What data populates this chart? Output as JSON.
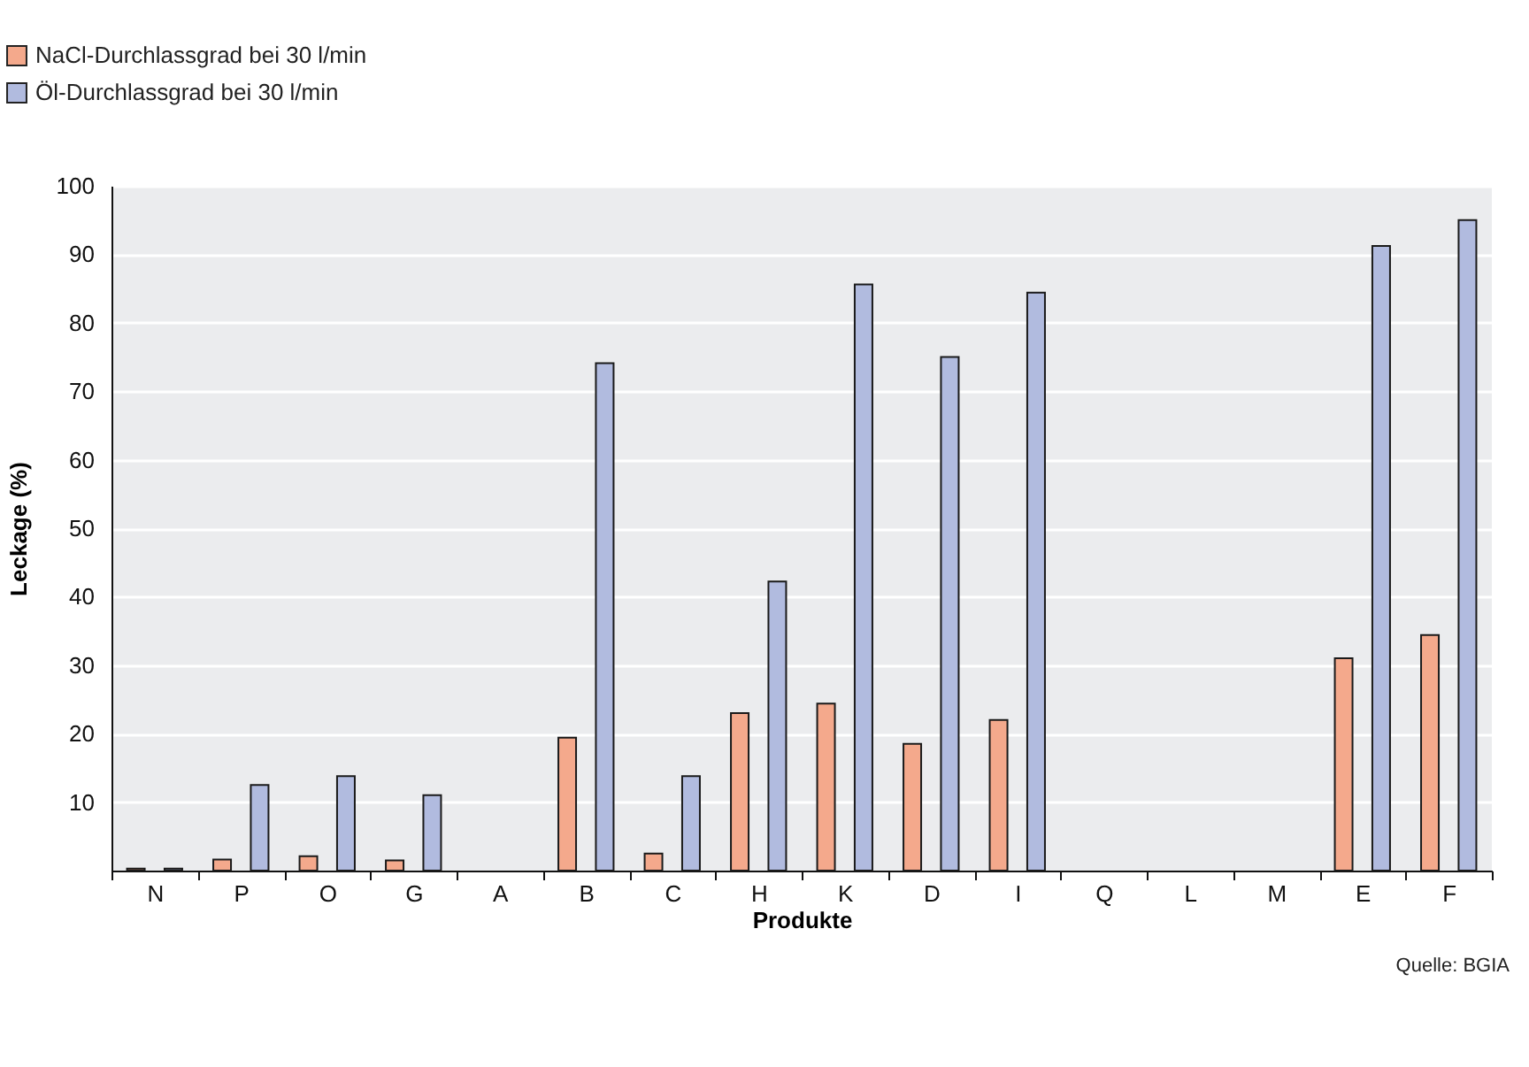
{
  "chart_data": {
    "type": "bar",
    "xlabel": "Produkte",
    "ylabel": "Leckage (%)",
    "categories": [
      "N",
      "P",
      "O",
      "G",
      "A",
      "B",
      "C",
      "H",
      "K",
      "D",
      "I",
      "Q",
      "L",
      "M",
      "E",
      "F"
    ],
    "series": [
      {
        "name": "NaCl-Durchlassgrad bei 30 l/min",
        "color": "#f4a98c",
        "values": [
          0.3,
          1.6,
          2.1,
          1.5,
          null,
          19.4,
          2.5,
          23.0,
          24.4,
          18.5,
          22.0,
          null,
          null,
          null,
          31.0,
          34.4
        ]
      },
      {
        "name": "Öl-Durchlassgrad bei 30 l/min",
        "color": "#b1bbdf",
        "values": [
          0.3,
          12.5,
          13.8,
          11.0,
          null,
          74.1,
          13.8,
          42.2,
          85.6,
          75.0,
          84.4,
          null,
          null,
          null,
          91.2,
          95.0
        ]
      }
    ],
    "ylim": [
      0,
      100
    ],
    "yticks": [
      10,
      20,
      30,
      40,
      50,
      60,
      70,
      80,
      90,
      100
    ],
    "grid": "y",
    "legend": "top left",
    "annotations": [
      "Quelle: BGIA"
    ]
  }
}
